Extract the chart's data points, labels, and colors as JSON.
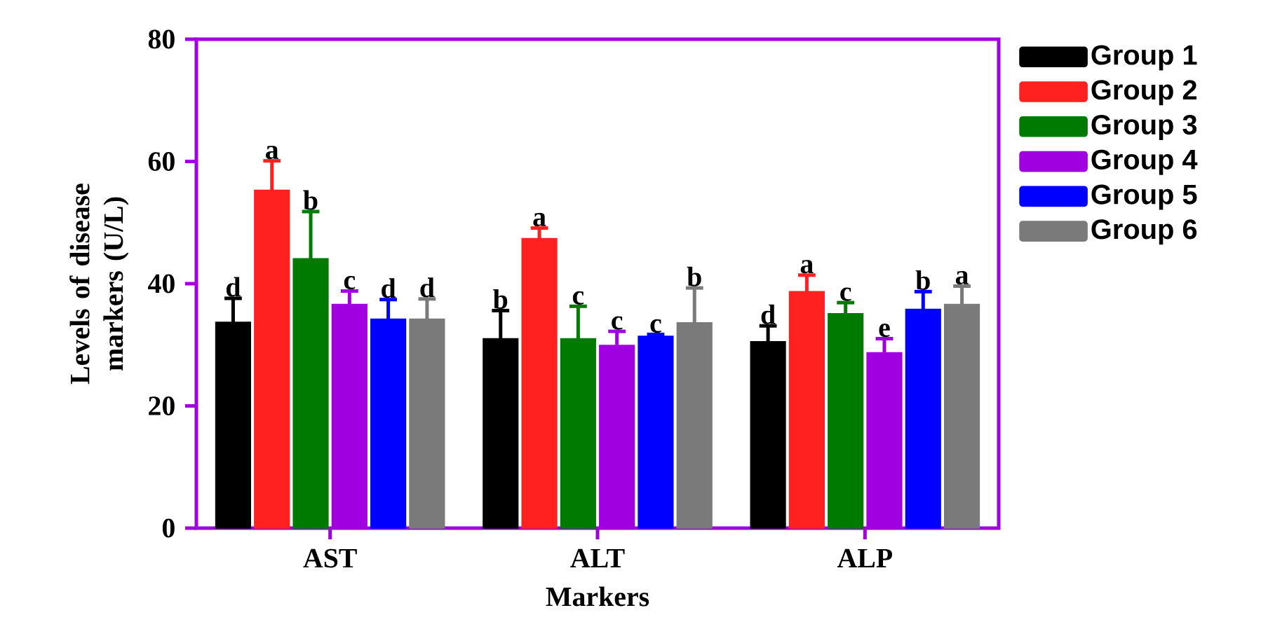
{
  "chart_data": {
    "type": "bar",
    "xlabel": "Markers",
    "ylabel": "Levels of disease markers (U/L)",
    "categories": [
      "AST",
      "ALT",
      "ALP"
    ],
    "ylim": [
      0,
      80
    ],
    "yticks": [
      0,
      20,
      40,
      60,
      80
    ],
    "legend": "right",
    "series": [
      {
        "name": "Group 1",
        "color": "#000000",
        "values": [
          33.7,
          31.0,
          30.5
        ],
        "errors": [
          [
            33.7,
            37.6
          ],
          [
            31.0,
            35.6
          ],
          [
            30.5,
            33.1
          ]
        ],
        "value_labels": [
          "d",
          "b",
          "d"
        ]
      },
      {
        "name": "Group 2",
        "color": "#ff2020",
        "values": [
          55.3,
          47.4,
          38.7
        ],
        "errors": [
          [
            55.3,
            60.1
          ],
          [
            47.4,
            49.1
          ],
          [
            38.7,
            41.4
          ]
        ],
        "value_labels": [
          "a",
          "a",
          "a"
        ]
      },
      {
        "name": "Group 3",
        "color": "#007a00",
        "values": [
          44.1,
          31.0,
          35.1
        ],
        "errors": [
          [
            44.1,
            51.8
          ],
          [
            31.0,
            36.3
          ],
          [
            35.1,
            36.9
          ]
        ],
        "value_labels": [
          "b",
          "c",
          "c"
        ]
      },
      {
        "name": "Group 4",
        "color": "#a000e0",
        "values": [
          36.6,
          29.9,
          28.7
        ],
        "errors": [
          [
            36.6,
            38.8
          ],
          [
            29.9,
            32.2
          ],
          [
            28.7,
            31.0
          ]
        ],
        "value_labels": [
          "c",
          "c",
          "e"
        ]
      },
      {
        "name": "Group 5",
        "color": "#0000ff",
        "values": [
          34.2,
          31.4,
          35.8
        ],
        "errors": [
          [
            34.2,
            37.4
          ],
          [
            31.4,
            31.7
          ],
          [
            35.8,
            38.7
          ]
        ],
        "value_labels": [
          "d",
          "c",
          "b"
        ]
      },
      {
        "name": "Group 6",
        "color": "#7a7a7a",
        "values": [
          34.2,
          33.6,
          36.6
        ],
        "errors": [
          [
            34.2,
            37.5
          ],
          [
            33.6,
            39.3
          ],
          [
            36.6,
            39.6
          ]
        ],
        "value_labels": [
          "d",
          "b",
          "a"
        ]
      }
    ]
  }
}
